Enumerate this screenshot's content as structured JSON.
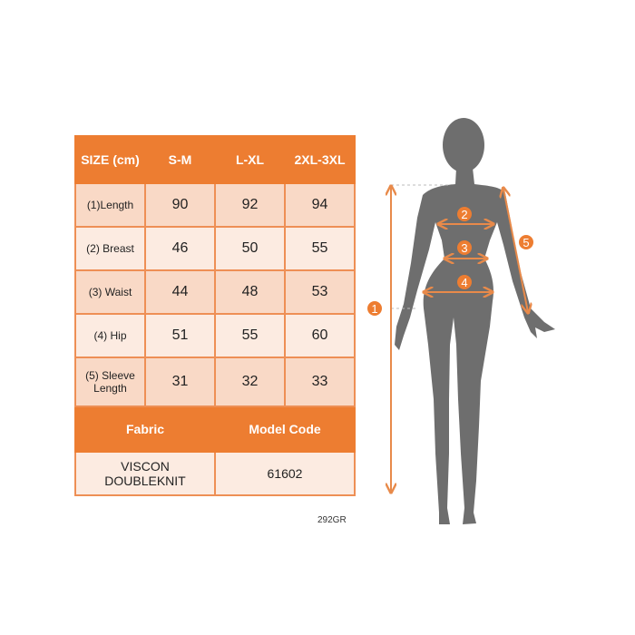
{
  "table": {
    "header": [
      "SIZE (cm)",
      "S-M",
      "L-XL",
      "2XL-3XL"
    ],
    "rows": [
      {
        "label": "(1)Length",
        "values": [
          "90",
          "92",
          "94"
        ]
      },
      {
        "label": "(2) Breast",
        "values": [
          "46",
          "50",
          "55"
        ]
      },
      {
        "label": "(3) Waist",
        "values": [
          "44",
          "48",
          "53"
        ]
      },
      {
        "label": "(4) Hip",
        "values": [
          "51",
          "55",
          "60"
        ]
      },
      {
        "label": "(5) Sleeve Length",
        "values": [
          "31",
          "32",
          "33"
        ]
      }
    ],
    "fabric_label": "Fabric",
    "model_code_label": "Model Code",
    "fabric_value": "VISCON DOUBLEKNIT",
    "model_code_value": "61602"
  },
  "image_code": "292GR",
  "figure": {
    "markers": [
      "1",
      "2",
      "3",
      "4",
      "5"
    ]
  },
  "colors": {
    "accent": "#ED7D31",
    "silhouette": "#6E6E6E"
  }
}
